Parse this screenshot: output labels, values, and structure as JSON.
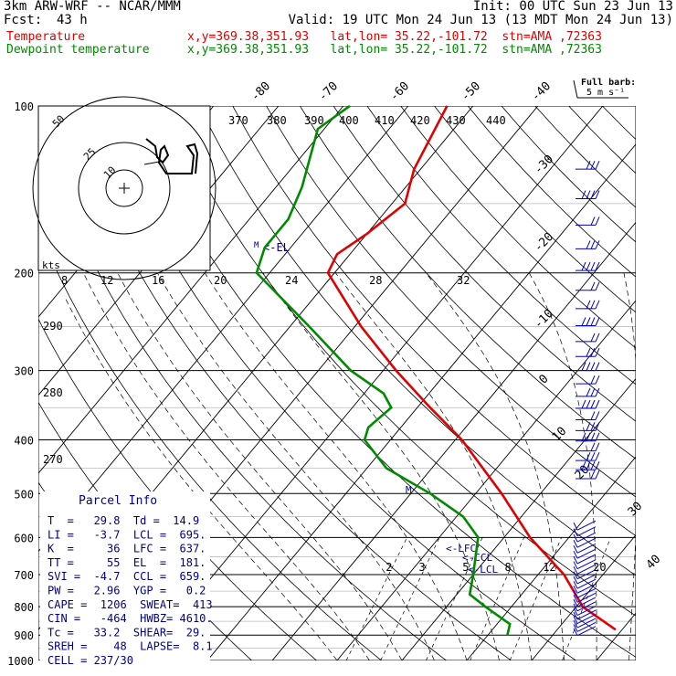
{
  "header": {
    "model": "3km ARW-WRF -- NCAR/MMM",
    "init": "Init: 00 UTC Sun 23 Jun 13",
    "fcst_label": "Fcst:",
    "fcst_value": "43 h",
    "valid": "Valid: 19 UTC Mon 24 Jun 13 (13 MDT Mon 24 Jun 13)",
    "temp_label": "Temperature",
    "dew_label": "Dewpoint temperature",
    "temp_loc": "x,y=369.38,351.93   lat,lon= 35.22,-101.72  stn=AMA ,72363",
    "dew_loc": "x,y=369.38,351.93   lat,lon= 35.22,-101.72  stn=AMA ,72363"
  },
  "colors": {
    "temperature": "#e00000",
    "dewpoint": "#008a00",
    "labels": "#00008b",
    "barbs": "#0000cc"
  },
  "barb_key": {
    "title": "Full barb:",
    "value": "5 m s⁻¹"
  },
  "parcel_info": {
    "title": "Parcel Info",
    "rows": [
      "T  =   29.8  Td =  14.9",
      "LI =   -3.7  LCL =  695.",
      "K  =     36  LFC =  637.",
      "TT =     55  EL  =  181.",
      "SVI =  -4.7  CCL =  659.",
      "PW =   2.96  YGP =   0.2",
      "CAPE =  1206  SWEAT=  413",
      "CIN =   -464  HWBZ= 4610.",
      "Tc =   33.2  SHEAR=  29.",
      "SREH =    48  LAPSE=  8.1",
      "CELL = 237/30"
    ]
  },
  "hodograph": {
    "units": "kts",
    "ring_labels": [
      "50",
      "25",
      "10"
    ],
    "scale_labels": [
      "8",
      "12",
      "16",
      "20",
      "24",
      "28",
      "32"
    ]
  },
  "level_labels": {
    "el": "<-EL",
    "lfc": "<-LFC",
    "ccl": "<-CCL",
    "lcl": "<-LCL"
  },
  "chart_data": {
    "type": "line",
    "pressure_ticks": [
      100,
      200,
      300,
      400,
      500,
      600,
      700,
      800,
      900,
      1000
    ],
    "isotherm_labels": [
      "-80",
      "-70",
      "-60",
      "-50",
      "-40",
      "-30",
      "-20",
      "-10",
      "0",
      "10",
      "20",
      "30",
      "40"
    ],
    "theta_labels": [
      "370",
      "380",
      "390",
      "400",
      "410",
      "420",
      "430",
      "440",
      "290",
      "280",
      "270"
    ],
    "mixing_ratio_labels": [
      "2",
      "3",
      "5",
      "8",
      "12",
      "20"
    ],
    "series": [
      {
        "name": "Temperature",
        "points": [
          [
            100,
            -64
          ],
          [
            130,
            -61
          ],
          [
            150,
            -58
          ],
          [
            170,
            -60
          ],
          [
            185,
            -62
          ],
          [
            200,
            -61
          ],
          [
            250,
            -49
          ],
          [
            300,
            -38
          ],
          [
            350,
            -28
          ],
          [
            400,
            -19
          ],
          [
            500,
            -6
          ],
          [
            600,
            4
          ],
          [
            700,
            14
          ],
          [
            800,
            21
          ],
          [
            880,
            29
          ]
        ]
      },
      {
        "name": "Dewpoint temperature",
        "points": [
          [
            100,
            -79
          ],
          [
            110,
            -81
          ],
          [
            140,
            -76
          ],
          [
            160,
            -74
          ],
          [
            180,
            -74
          ],
          [
            200,
            -72
          ],
          [
            250,
            -57
          ],
          [
            300,
            -45
          ],
          [
            330,
            -37
          ],
          [
            350,
            -34
          ],
          [
            380,
            -35
          ],
          [
            400,
            -34
          ],
          [
            450,
            -27
          ],
          [
            500,
            -17
          ],
          [
            550,
            -9
          ],
          [
            600,
            -4
          ],
          [
            700,
            0
          ],
          [
            760,
            2
          ],
          [
            800,
            6
          ],
          [
            860,
            12
          ],
          [
            900,
            13
          ]
        ]
      }
    ]
  }
}
